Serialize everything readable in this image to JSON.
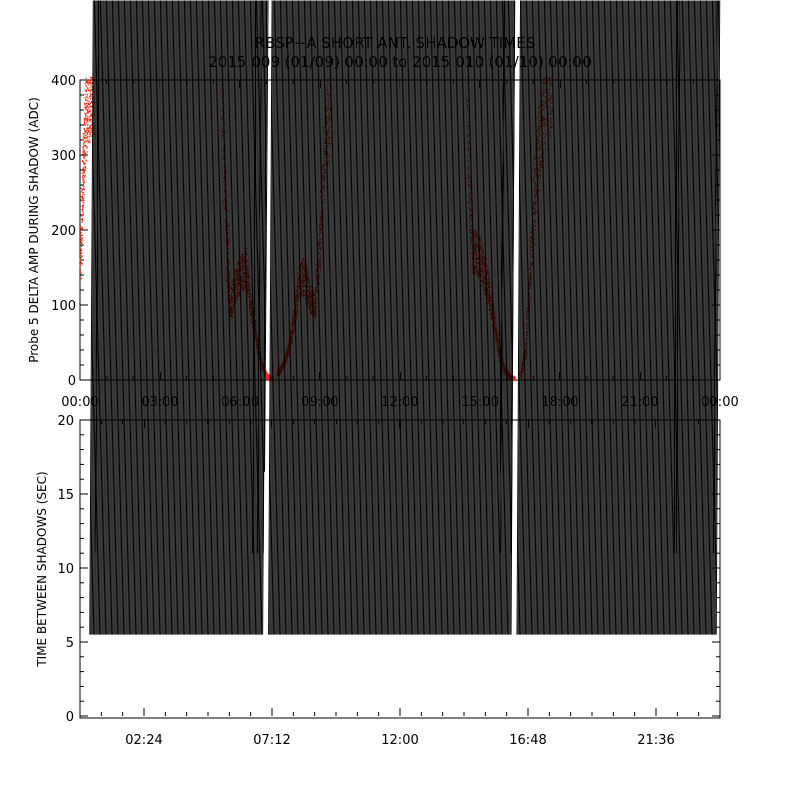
{
  "title_line1": "RBSP−A SHORT ANT. SHADOW TIMES",
  "title_line2": "2015 009 (01/09) 00:00 to 2015 010 (01/10) 00:00",
  "chart_data": [
    {
      "type": "scatter",
      "ylabel": "Probe 5 DELTA AMP DURING SHADOW (ADC)",
      "ylim": [
        0,
        400
      ],
      "xlim": [
        0,
        24
      ],
      "x_tick_labels": [
        "00:00",
        "03:00",
        "06:00",
        "09:00",
        "12:00",
        "15:00",
        "18:00",
        "21:00",
        "00:00"
      ],
      "y_tick_labels": [
        "0",
        "100",
        "200",
        "300",
        "400"
      ],
      "color": "#ff2a10",
      "series": [
        {
          "x": [
            0.0,
            0.1,
            0.2,
            0.3,
            0.4,
            0.5
          ],
          "y": [
            150,
            270,
            350,
            385,
            395,
            400
          ]
        },
        {
          "x": [
            5.3,
            5.5,
            5.6,
            5.8,
            6.0,
            6.2,
            6.4,
            6.6,
            6.8,
            7.0,
            7.2
          ],
          "y": [
            390,
            180,
            90,
            125,
            140,
            150,
            100,
            55,
            20,
            5,
            0
          ]
        },
        {
          "x": [
            7.4,
            7.6,
            7.8,
            8.0,
            8.2,
            8.4,
            8.6,
            8.8,
            9.0,
            9.2,
            9.4
          ],
          "y": [
            10,
            20,
            40,
            80,
            130,
            140,
            110,
            100,
            190,
            330,
            390
          ]
        },
        {
          "x": [
            14.5,
            14.7,
            14.9,
            15.1,
            15.3,
            15.5,
            15.7,
            15.9,
            16.1,
            16.3
          ],
          "y": [
            350,
            170,
            170,
            150,
            120,
            80,
            40,
            15,
            5,
            0
          ]
        },
        {
          "x": [
            16.5,
            16.7,
            16.9,
            17.1,
            17.3,
            17.5,
            17.7
          ],
          "y": [
            5,
            40,
            160,
            280,
            340,
            390,
            400
          ]
        },
        {
          "x": [
            0.8,
            2.9,
            19.9
          ],
          "y": [
            110,
            40,
            185
          ]
        }
      ]
    },
    {
      "type": "scatter",
      "ylabel": "TIME BETWEEN SHADOWS (SEC)",
      "ylim": [
        0,
        20
      ],
      "xlim": [
        0,
        24
      ],
      "x_tick_labels": [
        "02:24",
        "07:12",
        "12:00",
        "16:48",
        "21:36"
      ],
      "y_tick_labels": [
        "0",
        "5",
        "10",
        "15",
        "20"
      ],
      "color": "#000000",
      "marker": "*",
      "baseline": {
        "value": 5.5,
        "from": 0.5,
        "to": 24,
        "gaps": [
          7.1,
          16.4
        ]
      },
      "points": [
        {
          "x": 0.7,
          "y": 11
        },
        {
          "x": 6.6,
          "y": 11
        },
        {
          "x": 6.8,
          "y": 11
        },
        {
          "x": 7.0,
          "y": 11
        },
        {
          "x": 7.05,
          "y": 16.5
        },
        {
          "x": 15.9,
          "y": 11
        },
        {
          "x": 15.9,
          "y": 16.5
        },
        {
          "x": 16.3,
          "y": 11
        },
        {
          "x": 22.4,
          "y": 11
        },
        {
          "x": 22.5,
          "y": 11
        },
        {
          "x": 23.9,
          "y": 11
        }
      ]
    }
  ]
}
